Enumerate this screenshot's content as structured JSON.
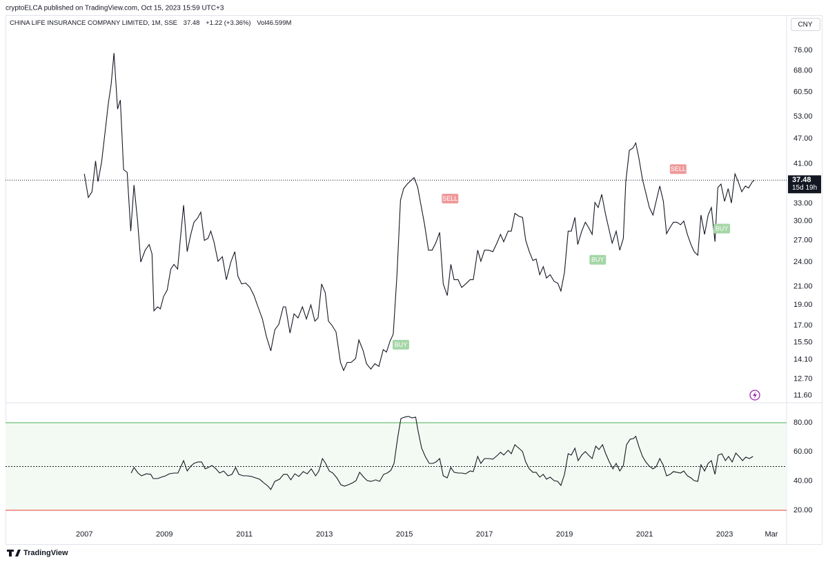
{
  "header": {
    "publisher": "cryptoELCA published on TradingView.com, Oct 15, 2023 15:59 UTC+3",
    "currency": "CNY",
    "brand": "TradingView"
  },
  "chart_data": [
    {
      "type": "line",
      "title": "CHINA LIFE INSURANCE COMPANY LIMITED, 1M, SSE",
      "change": "+1.22 (+3.36%)",
      "volume": "Vol46.599M",
      "last_price": {
        "value": 37.48,
        "label": "37.48"
      },
      "countdown": "15d 19h",
      "log": true,
      "grid": false,
      "xlim": [
        2005.03,
        2024.55
      ],
      "ylim": [
        11.2,
        91
      ],
      "yticks": [
        {
          "value": 11.6,
          "label": "11.60"
        },
        {
          "value": 12.7,
          "label": "12.70"
        },
        {
          "value": 14.1,
          "label": "14.10"
        },
        {
          "value": 15.5,
          "label": "15.50"
        },
        {
          "value": 17,
          "label": "17.00"
        },
        {
          "value": 19,
          "label": "19.00"
        },
        {
          "value": 21,
          "label": "21.00"
        },
        {
          "value": 24,
          "label": "24.00"
        },
        {
          "value": 27,
          "label": "27.00"
        },
        {
          "value": 30,
          "label": "30.00"
        },
        {
          "value": 33,
          "label": "33.00"
        },
        {
          "value": 41,
          "label": "41.00"
        },
        {
          "value": 47,
          "label": "47.00"
        },
        {
          "value": 53,
          "label": "53.00"
        },
        {
          "value": 60.5,
          "label": "60.50"
        },
        {
          "value": 68,
          "label": "68.00"
        },
        {
          "value": 76,
          "label": "76.00"
        }
      ],
      "x": [
        2007.0,
        2007.1,
        2007.19,
        2007.28,
        2007.34,
        2007.43,
        2007.52,
        2007.6,
        2007.67,
        2007.74,
        2007.83,
        2007.9,
        2007.98,
        2008.07,
        2008.16,
        2008.24,
        2008.33,
        2008.41,
        2008.52,
        2008.62,
        2008.69,
        2008.74,
        2008.83,
        2008.9,
        2008.98,
        2009.07,
        2009.16,
        2009.24,
        2009.33,
        2009.41,
        2009.48,
        2009.57,
        2009.66,
        2009.74,
        2009.83,
        2009.91,
        2010.0,
        2010.09,
        2010.16,
        2010.24,
        2010.34,
        2010.45,
        2010.55,
        2010.66,
        2010.76,
        2010.84,
        2010.93,
        2011.03,
        2011.14,
        2011.24,
        2011.34,
        2011.45,
        2011.55,
        2011.66,
        2011.76,
        2011.86,
        2011.97,
        2012.03,
        2012.14,
        2012.24,
        2012.34,
        2012.45,
        2012.55,
        2012.66,
        2012.76,
        2012.84,
        2012.93,
        2013.02,
        2013.1,
        2013.19,
        2013.29,
        2013.4,
        2013.48,
        2013.57,
        2013.67,
        2013.78,
        2013.86,
        2013.97,
        2014.05,
        2014.16,
        2014.26,
        2014.36,
        2014.47,
        2014.55,
        2014.64,
        2014.72,
        2014.81,
        2014.9,
        2014.98,
        2015.07,
        2015.16,
        2015.24,
        2015.33,
        2015.41,
        2015.5,
        2015.6,
        2015.69,
        2015.78,
        2015.88,
        2015.97,
        2016.07,
        2016.16,
        2016.24,
        2016.34,
        2016.43,
        2016.53,
        2016.64,
        2016.72,
        2016.83,
        2016.91,
        2017.0,
        2017.1,
        2017.21,
        2017.31,
        2017.4,
        2017.48,
        2017.59,
        2017.67,
        2017.76,
        2017.86,
        2017.95,
        2018.03,
        2018.12,
        2018.21,
        2018.29,
        2018.38,
        2018.47,
        2018.55,
        2018.64,
        2018.74,
        2018.83,
        2018.91,
        2019.0,
        2019.09,
        2019.17,
        2019.26,
        2019.33,
        2019.43,
        2019.52,
        2019.6,
        2019.69,
        2019.76,
        2019.84,
        2019.93,
        2020.02,
        2020.1,
        2020.19,
        2020.29,
        2020.38,
        2020.47,
        2020.53,
        2020.62,
        2020.71,
        2020.78,
        2020.86,
        2020.95,
        2021.03,
        2021.12,
        2021.21,
        2021.29,
        2021.38,
        2021.47,
        2021.55,
        2021.64,
        2021.72,
        2021.81,
        2021.9,
        2021.98,
        2022.07,
        2022.16,
        2022.24,
        2022.33,
        2022.41,
        2022.5,
        2022.59,
        2022.67,
        2022.76,
        2022.83,
        2022.91,
        2023.0,
        2023.09,
        2023.17,
        2023.26,
        2023.34,
        2023.43,
        2023.52,
        2023.6,
        2023.69,
        2023.74
      ],
      "series": [
        {
          "color": "#131722",
          "values": [
            38.8,
            34.1,
            35.2,
            41.6,
            37.2,
            41.3,
            48.9,
            56.9,
            63.2,
            74.9,
            55.2,
            58.0,
            39.7,
            39.1,
            28.4,
            36.5,
            30.0,
            24.0,
            25.6,
            26.4,
            25.1,
            18.4,
            18.8,
            18.6,
            19.9,
            20.6,
            23.1,
            23.7,
            23.1,
            27.9,
            32.7,
            25.4,
            27.9,
            29.8,
            30.5,
            31.5,
            27.0,
            27.3,
            28.4,
            26.8,
            24.1,
            24.7,
            21.8,
            24.0,
            25.4,
            22.2,
            21.3,
            21.4,
            20.9,
            20.0,
            18.8,
            17.6,
            16.0,
            14.8,
            16.6,
            17.1,
            18.8,
            18.8,
            16.3,
            18.1,
            17.7,
            18.8,
            17.6,
            19.0,
            17.4,
            17.7,
            21.3,
            20.3,
            17.4,
            17.0,
            16.4,
            13.9,
            13.3,
            13.9,
            13.9,
            14.2,
            15.7,
            14.8,
            13.8,
            13.4,
            13.8,
            13.6,
            14.9,
            14.7,
            15.6,
            16.2,
            22.2,
            33.6,
            35.8,
            36.7,
            37.4,
            38.0,
            36.1,
            32.8,
            29.5,
            25.6,
            25.6,
            26.6,
            28.2,
            21.3,
            20.0,
            23.7,
            21.8,
            21.8,
            20.9,
            21.3,
            21.8,
            21.8,
            25.6,
            24.1,
            25.6,
            25.6,
            25.4,
            26.6,
            27.9,
            26.8,
            28.4,
            28.4,
            31.3,
            30.8,
            30.6,
            27.0,
            25.4,
            24.2,
            24.4,
            22.4,
            23.4,
            22.0,
            22.4,
            21.6,
            21.4,
            20.5,
            22.7,
            28.4,
            28.4,
            30.6,
            26.4,
            28.4,
            29.8,
            29.0,
            27.9,
            33.2,
            32.3,
            34.7,
            31.3,
            29.0,
            26.6,
            28.4,
            25.6,
            27.3,
            37.1,
            44.1,
            44.6,
            45.9,
            42.2,
            37.6,
            35.0,
            32.3,
            31.0,
            33.4,
            36.3,
            33.4,
            28.0,
            29.0,
            29.8,
            29.8,
            29.4,
            30.0,
            27.9,
            26.4,
            25.4,
            24.9,
            31.0,
            27.9,
            31.0,
            32.3,
            26.8,
            36.0,
            36.7,
            33.4,
            35.8,
            33.1,
            38.8,
            37.2,
            35.2,
            36.3,
            35.9,
            37.1,
            37.48
          ]
        }
      ],
      "annotations": [
        {
          "text": "BUY",
          "x": 2014.91,
          "y": 15.3,
          "color": "#a5d6a7"
        },
        {
          "text": "SELL",
          "x": 2016.14,
          "y": 33.9,
          "color": "#ef9a9a"
        },
        {
          "text": "BUY",
          "x": 2019.83,
          "y": 24.3,
          "color": "#a5d6a7"
        },
        {
          "text": "SELL",
          "x": 2021.84,
          "y": 39.8,
          "color": "#ef9a9a"
        },
        {
          "text": "BUY",
          "x": 2022.93,
          "y": 28.8,
          "color": "#a5d6a7"
        }
      ]
    },
    {
      "type": "line",
      "log": false,
      "grid": false,
      "band_fill": "#f3faf3",
      "xlim": [
        2005.03,
        2024.55
      ],
      "ylim": [
        9.6,
        93.2
      ],
      "yticks": [
        {
          "value": 20,
          "label": "20.00"
        },
        {
          "value": 40,
          "label": "40.00"
        },
        {
          "value": 60,
          "label": "60.00"
        },
        {
          "value": 80,
          "label": "80.00"
        }
      ],
      "xticks": [
        2007,
        2009,
        2011,
        2013,
        2015,
        2017,
        2019,
        2021,
        2023,
        {
          "value": 2024.17,
          "label": "Mar"
        }
      ],
      "bands": [
        {
          "value": 80,
          "color": "#4caf50",
          "dash": "none"
        },
        {
          "value": 50,
          "color": "#131722",
          "dash": "2 2"
        },
        {
          "value": 20,
          "color": "#e53935",
          "dash": "none"
        }
      ],
      "x": [
        2008.17,
        2008.24,
        2008.34,
        2008.43,
        2008.55,
        2008.66,
        2008.72,
        2008.83,
        2008.93,
        2009.03,
        2009.12,
        2009.24,
        2009.34,
        2009.41,
        2009.48,
        2009.57,
        2009.66,
        2009.74,
        2009.84,
        2009.93,
        2010.02,
        2010.1,
        2010.19,
        2010.29,
        2010.38,
        2010.48,
        2010.59,
        2010.69,
        2010.78,
        2010.86,
        2010.97,
        2011.07,
        2011.17,
        2011.28,
        2011.38,
        2011.48,
        2011.59,
        2011.66,
        2011.76,
        2011.88,
        2011.98,
        2012.07,
        2012.16,
        2012.26,
        2012.36,
        2012.47,
        2012.57,
        2012.67,
        2012.78,
        2012.86,
        2012.95,
        2013.03,
        2013.12,
        2013.21,
        2013.31,
        2013.41,
        2013.5,
        2013.6,
        2013.71,
        2013.79,
        2013.88,
        2013.98,
        2014.07,
        2014.17,
        2014.28,
        2014.38,
        2014.48,
        2014.57,
        2014.66,
        2014.74,
        2014.83,
        2014.91,
        2015.0,
        2015.1,
        2015.19,
        2015.28,
        2015.34,
        2015.43,
        2015.52,
        2015.62,
        2015.71,
        2015.79,
        2015.88,
        2015.97,
        2016.07,
        2016.16,
        2016.24,
        2016.34,
        2016.43,
        2016.53,
        2016.64,
        2016.72,
        2016.83,
        2016.91,
        2017.0,
        2017.1,
        2017.21,
        2017.31,
        2017.4,
        2017.48,
        2017.59,
        2017.67,
        2017.76,
        2017.86,
        2017.95,
        2018.03,
        2018.12,
        2018.21,
        2018.29,
        2018.38,
        2018.47,
        2018.55,
        2018.64,
        2018.74,
        2018.83,
        2018.91,
        2019.0,
        2019.09,
        2019.17,
        2019.26,
        2019.34,
        2019.43,
        2019.52,
        2019.6,
        2019.69,
        2019.78,
        2019.86,
        2019.95,
        2020.03,
        2020.12,
        2020.21,
        2020.29,
        2020.38,
        2020.47,
        2020.55,
        2020.64,
        2020.72,
        2020.78,
        2020.86,
        2020.95,
        2021.03,
        2021.12,
        2021.21,
        2021.29,
        2021.38,
        2021.47,
        2021.55,
        2021.64,
        2021.72,
        2021.81,
        2021.9,
        2021.98,
        2022.07,
        2022.16,
        2022.24,
        2022.33,
        2022.41,
        2022.5,
        2022.59,
        2022.67,
        2022.76,
        2022.84,
        2022.93,
        2023.02,
        2023.1,
        2023.19,
        2023.28,
        2023.36,
        2023.45,
        2023.53,
        2023.62,
        2023.71
      ],
      "series": [
        {
          "color": "#131722",
          "values": [
            45.5,
            49.3,
            45.5,
            43.6,
            45.0,
            44.6,
            41.7,
            41.7,
            42.7,
            43.6,
            45.0,
            45.5,
            45.5,
            49.8,
            54.0,
            46.9,
            50.2,
            52.1,
            53.1,
            53.1,
            48.4,
            49.3,
            50.7,
            48.4,
            45.5,
            46.9,
            43.6,
            44.6,
            49.3,
            44.6,
            43.6,
            43.6,
            43.2,
            42.2,
            41.3,
            38.9,
            36.5,
            34.2,
            39.8,
            41.3,
            44.6,
            44.6,
            40.8,
            45.0,
            43.2,
            46.5,
            45.0,
            48.4,
            43.6,
            46.9,
            55.4,
            52.1,
            46.9,
            45.5,
            42.2,
            37.5,
            36.5,
            37.5,
            38.9,
            40.3,
            46.0,
            42.7,
            40.3,
            39.8,
            40.8,
            39.8,
            44.6,
            45.5,
            47.4,
            52.1,
            69.6,
            82.8,
            83.8,
            84.3,
            83.3,
            83.8,
            74.3,
            62.5,
            56.9,
            52.1,
            52.1,
            53.1,
            55.4,
            43.6,
            42.2,
            49.3,
            46.0,
            45.5,
            45.5,
            45.0,
            46.9,
            46.5,
            56.9,
            52.1,
            55.4,
            55.4,
            55.0,
            57.3,
            59.7,
            57.8,
            61.1,
            58.7,
            64.9,
            62.5,
            60.2,
            53.1,
            48.4,
            46.0,
            46.0,
            42.7,
            44.6,
            41.3,
            42.7,
            40.3,
            39.8,
            37.0,
            44.6,
            58.7,
            57.8,
            62.5,
            54.0,
            57.8,
            60.2,
            57.8,
            55.4,
            63.9,
            61.6,
            64.9,
            58.7,
            53.1,
            48.4,
            52.1,
            46.9,
            50.7,
            64.9,
            68.7,
            69.1,
            70.6,
            63.5,
            56.9,
            53.1,
            50.2,
            48.4,
            49.8,
            55.4,
            50.7,
            43.6,
            44.6,
            46.5,
            46.0,
            45.5,
            46.9,
            43.6,
            42.2,
            40.3,
            39.8,
            51.2,
            46.9,
            52.1,
            54.0,
            44.6,
            57.8,
            58.7,
            54.0,
            56.9,
            53.1,
            59.2,
            56.9,
            54.0,
            56.4,
            55.4,
            56.9
          ]
        }
      ]
    }
  ]
}
